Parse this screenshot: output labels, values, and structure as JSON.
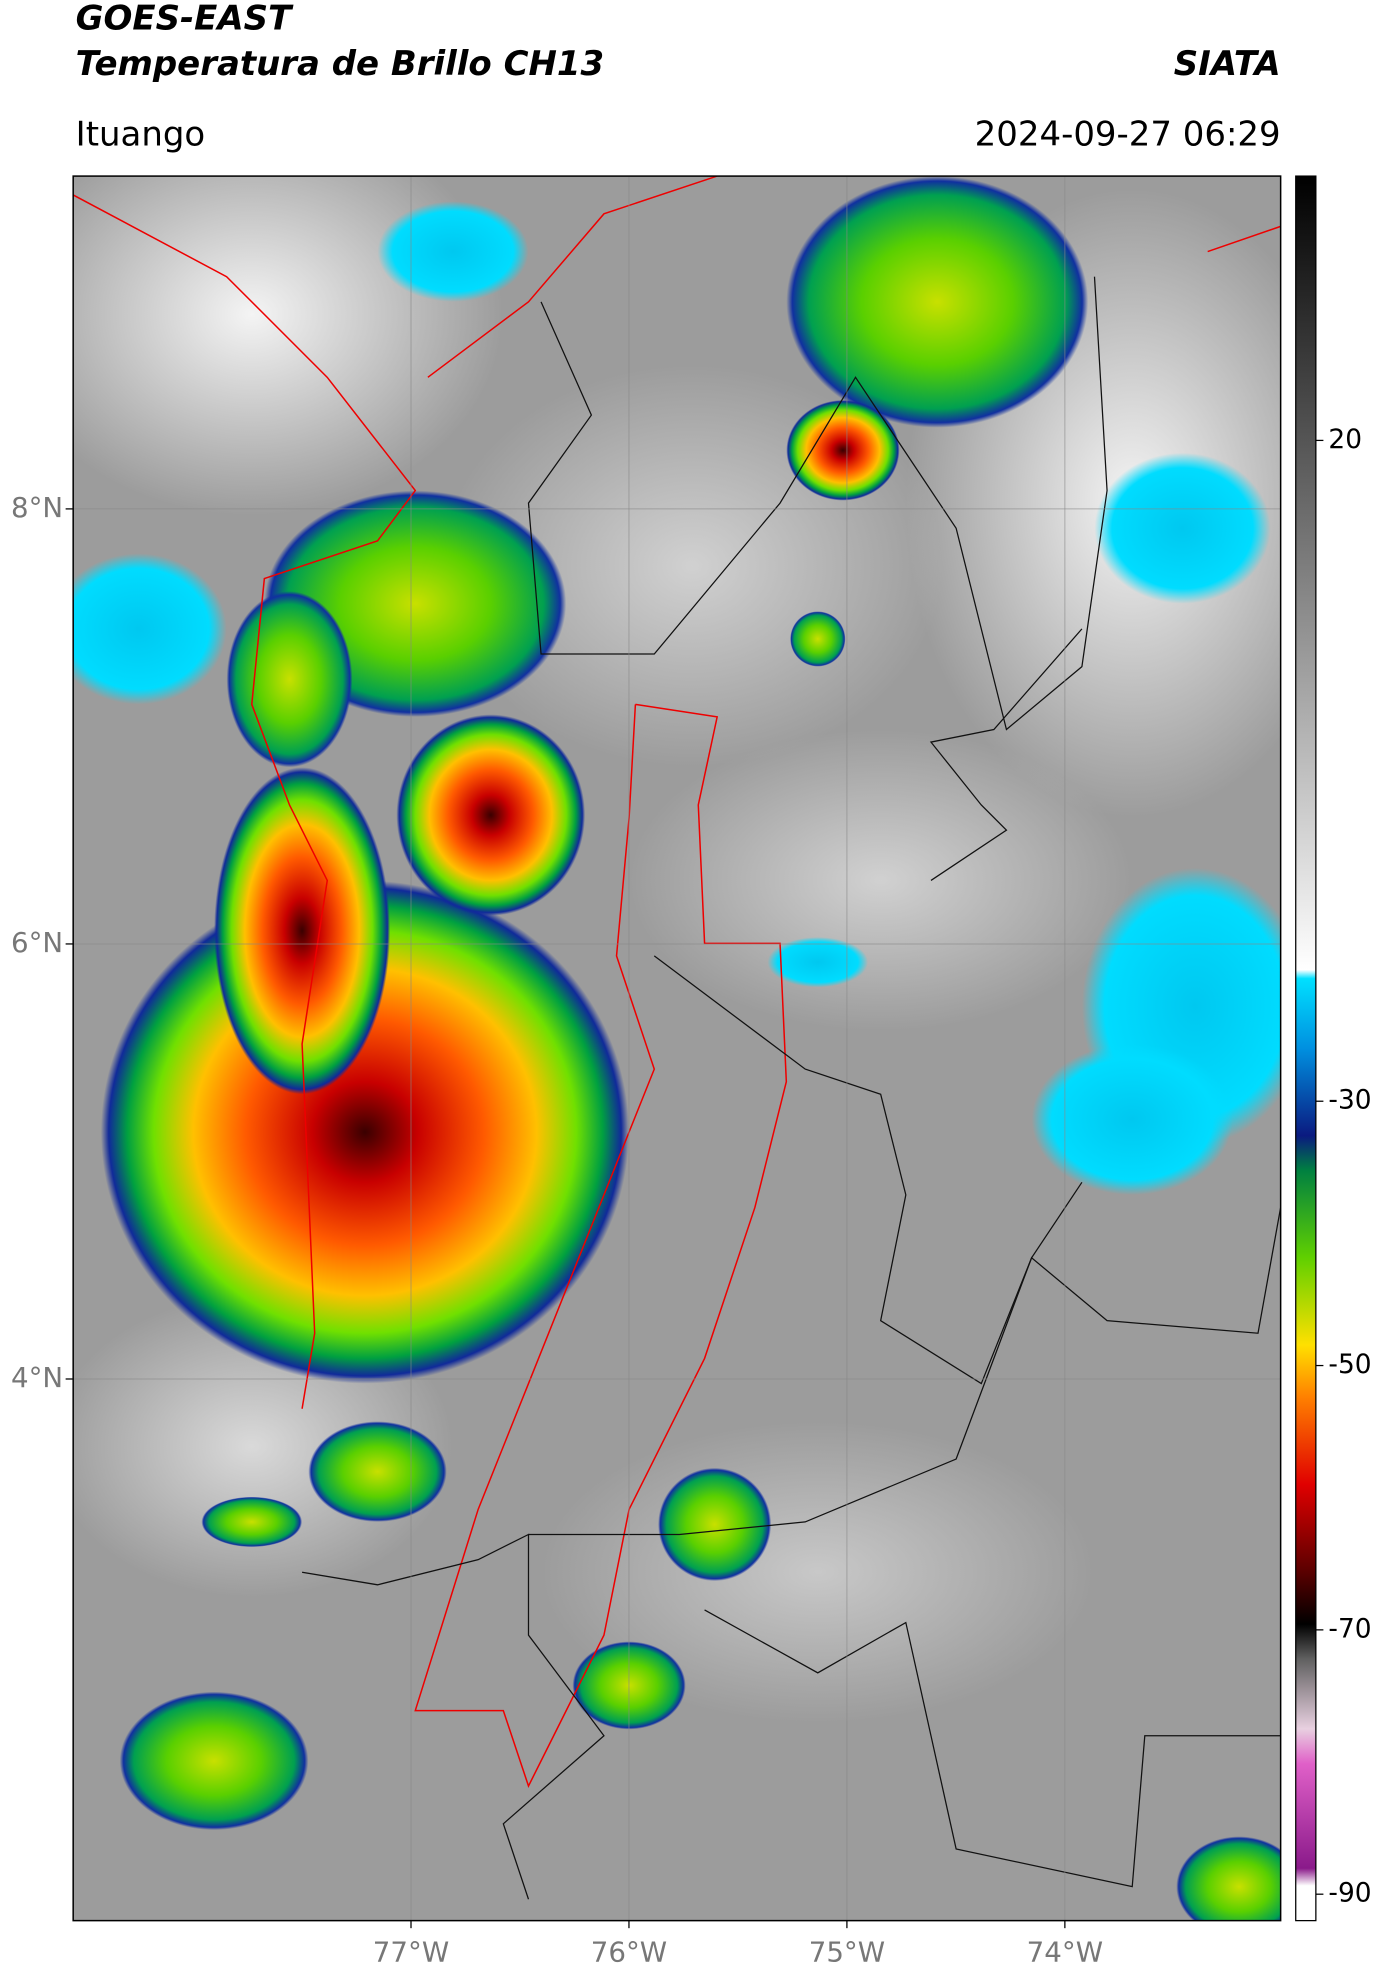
{
  "header": {
    "title": "GOES-EAST",
    "subtitle": "Temperatura de Brillo CH13",
    "source": "SIATA",
    "location": "Ituango",
    "datetime": "2024-09-27 06:29"
  },
  "map": {
    "xlim": [
      -78.55,
      -73.01
    ],
    "ylim": [
      1.51,
      9.53
    ],
    "xticks": [
      {
        "value": -77,
        "label": "77°W"
      },
      {
        "value": -76,
        "label": "76°W"
      },
      {
        "value": -75,
        "label": "75°W"
      },
      {
        "value": -74,
        "label": "74°W"
      }
    ],
    "yticks": [
      {
        "value": 8,
        "label": "8°N"
      },
      {
        "value": 6,
        "label": "6°N"
      },
      {
        "value": 4,
        "label": "4°N"
      }
    ]
  },
  "colorbar": {
    "lim": [
      -92,
      40
    ],
    "ticks": [
      20,
      -30,
      -50,
      -70,
      -90
    ]
  }
}
